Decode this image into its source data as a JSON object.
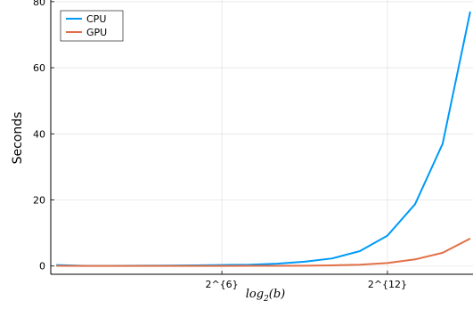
{
  "chart_data": {
    "type": "line",
    "xlabel": {
      "base": "log",
      "sub": "2",
      "arg": "(b)"
    },
    "ylabel": "Seconds",
    "xlim": [
      -0.2,
      15.1
    ],
    "ylim": [
      -2.5,
      80.5
    ],
    "grid": true,
    "legend_position": "top-left",
    "xticks": [
      {
        "value": 6,
        "label": "2^{6}"
      },
      {
        "value": 12,
        "label": "2^{12}"
      }
    ],
    "yticks": [
      0,
      20,
      40,
      60,
      80
    ],
    "x": [
      0,
      1,
      2,
      3,
      4,
      5,
      6,
      7,
      8,
      9,
      10,
      11,
      12,
      13,
      14,
      15
    ],
    "series": [
      {
        "name": "CPU",
        "color": "#009af9",
        "values": [
          0.3,
          0.05,
          0.05,
          0.08,
          0.12,
          0.2,
          0.3,
          0.4,
          0.7,
          1.3,
          2.3,
          4.5,
          9.2,
          18.7,
          37.0,
          77.0
        ]
      },
      {
        "name": "GPU",
        "color": "#e26f46",
        "values": [
          0.05,
          0.03,
          0.03,
          0.03,
          0.03,
          0.03,
          0.04,
          0.05,
          0.06,
          0.1,
          0.2,
          0.4,
          0.9,
          2.0,
          4.0,
          8.3
        ]
      }
    ]
  }
}
